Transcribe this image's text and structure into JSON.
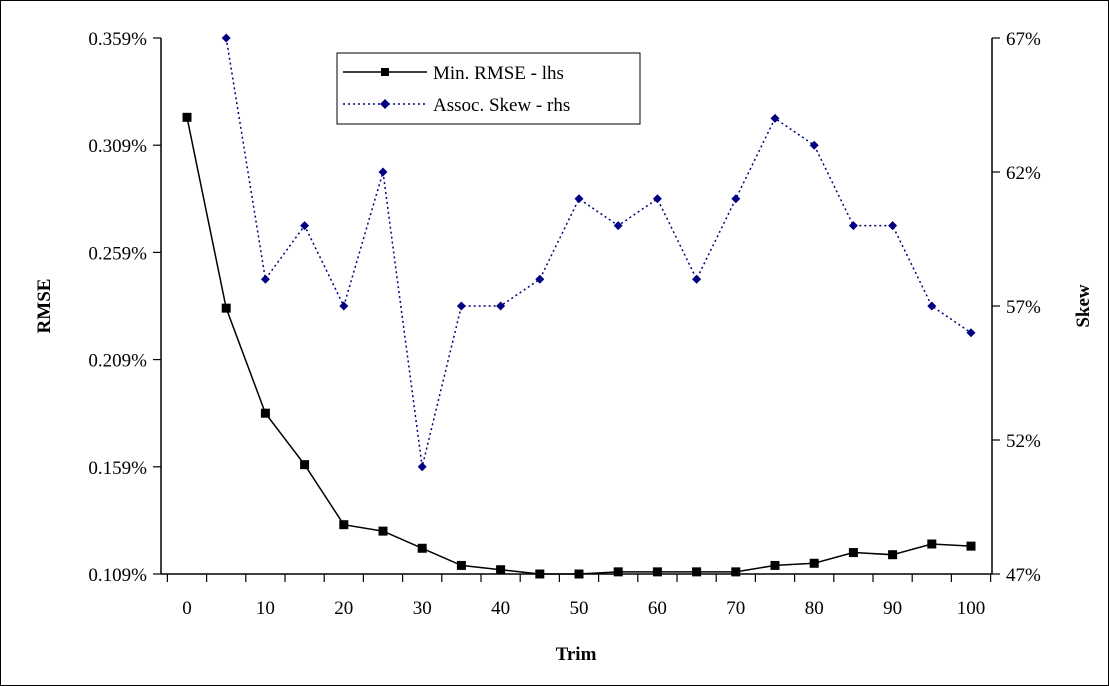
{
  "chart_data": {
    "type": "line",
    "title": "",
    "xlabel": "Trim",
    "ylabel": "RMSE",
    "y2label": "Skew",
    "x": [
      0,
      5,
      10,
      15,
      20,
      25,
      30,
      35,
      40,
      45,
      50,
      55,
      60,
      65,
      70,
      75,
      80,
      85,
      90,
      95,
      100
    ],
    "xticks": [
      "0",
      "10",
      "20",
      "30",
      "40",
      "50",
      "60",
      "70",
      "80",
      "90",
      "100"
    ],
    "xlim": [
      0,
      100
    ],
    "ylim": [
      0.109,
      0.359
    ],
    "yticks": [
      "0.109%",
      "0.159%",
      "0.209%",
      "0.259%",
      "0.309%",
      "0.359%"
    ],
    "y2lim": [
      47,
      67
    ],
    "y2ticks": [
      "47%",
      "52%",
      "57%",
      "62%",
      "67%"
    ],
    "grid": false,
    "legend_position": "top-center",
    "series": [
      {
        "name": "Min. RMSE - lhs",
        "axis": "left",
        "color": "#000000",
        "line_style": "solid",
        "marker": "square",
        "values": [
          0.322,
          0.233,
          0.184,
          0.16,
          0.132,
          0.129,
          0.121,
          0.113,
          0.111,
          0.109,
          0.109,
          0.11,
          0.11,
          0.11,
          0.11,
          0.113,
          0.114,
          0.119,
          0.118,
          0.123,
          0.122
        ]
      },
      {
        "name": "Assoc. Skew - rhs",
        "axis": "right",
        "color": "#000080",
        "line_style": "dotted",
        "marker": "diamond",
        "values": [
          null,
          67,
          58,
          60,
          57,
          62,
          51,
          57,
          57,
          58,
          61,
          60,
          61,
          58,
          61,
          64,
          63,
          60,
          60,
          57,
          56
        ]
      }
    ]
  }
}
